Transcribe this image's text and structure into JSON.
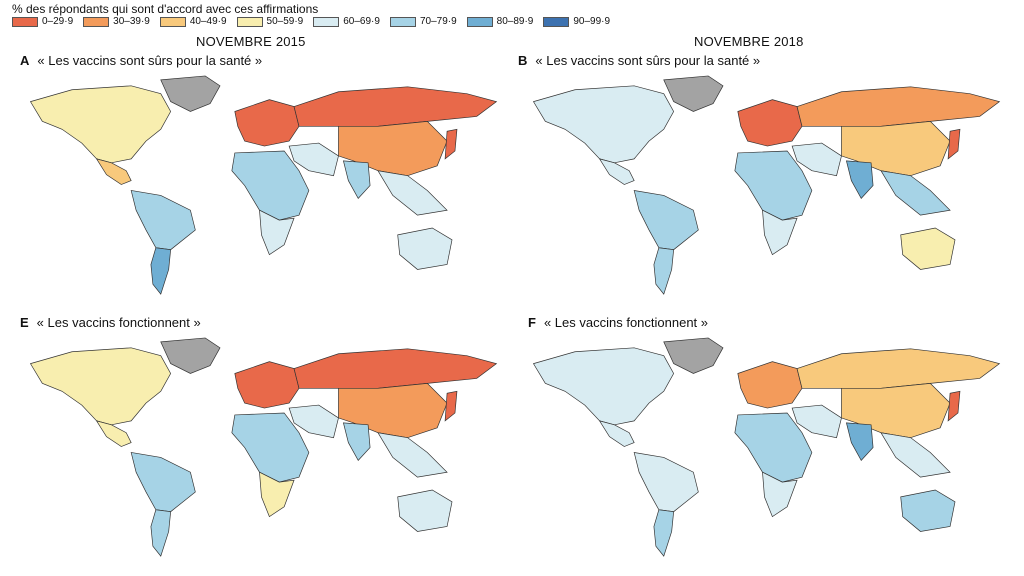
{
  "legend": {
    "title": "% des répondants qui sont d'accord avec ces affirmations",
    "bins": [
      {
        "label": "0–29·9",
        "color": "#e8694a"
      },
      {
        "label": "30–39·9",
        "color": "#f39b5b"
      },
      {
        "label": "40–49·9",
        "color": "#f8c97c"
      },
      {
        "label": "50–59·9",
        "color": "#f8eeaf"
      },
      {
        "label": "60–69·9",
        "color": "#d9ecf2"
      },
      {
        "label": "70–79·9",
        "color": "#a6d3e6"
      },
      {
        "label": "80–89·9",
        "color": "#6faed3"
      },
      {
        "label": "90–99·9",
        "color": "#3d72b0"
      }
    ]
  },
  "periods": [
    "NOVEMBRE 2015",
    "NOVEMBRE 2018"
  ],
  "panels": [
    {
      "letter": "A",
      "title": "« Les vaccins sont sûrs pour la santé »",
      "fills": {
        "na": 3,
        "greenland": -1,
        "mexico": 2,
        "samerica": 5,
        "samerica_south": 6,
        "europe": 0,
        "africa": 5,
        "africa_south": 4,
        "russia": 0,
        "mideast": 4,
        "asia": 1,
        "india": 5,
        "seasia": 4,
        "australia": 4,
        "japan": 0
      }
    },
    {
      "letter": "B",
      "title": "« Les vaccins sont sûrs pour la santé »",
      "fills": {
        "na": 4,
        "greenland": -1,
        "mexico": 4,
        "samerica": 5,
        "samerica_south": 5,
        "europe": 0,
        "africa": 5,
        "africa_south": 4,
        "russia": 1,
        "mideast": 4,
        "asia": 2,
        "india": 6,
        "seasia": 5,
        "australia": 3,
        "japan": 0
      }
    },
    {
      "letter": "E",
      "title": "« Les vaccins fonctionnent »",
      "fills": {
        "na": 3,
        "greenland": -1,
        "mexico": 3,
        "samerica": 5,
        "samerica_south": 5,
        "europe": 0,
        "africa": 5,
        "africa_south": 3,
        "russia": 0,
        "mideast": 4,
        "asia": 1,
        "india": 5,
        "seasia": 4,
        "australia": 4,
        "japan": 0
      }
    },
    {
      "letter": "F",
      "title": "« Les vaccins fonctionnent »",
      "fills": {
        "na": 4,
        "greenland": -1,
        "mexico": 4,
        "samerica": 4,
        "samerica_south": 5,
        "europe": 1,
        "africa": 5,
        "africa_south": 4,
        "russia": 2,
        "mideast": 4,
        "asia": 2,
        "india": 6,
        "seasia": 4,
        "australia": 5,
        "japan": 0
      }
    }
  ]
}
